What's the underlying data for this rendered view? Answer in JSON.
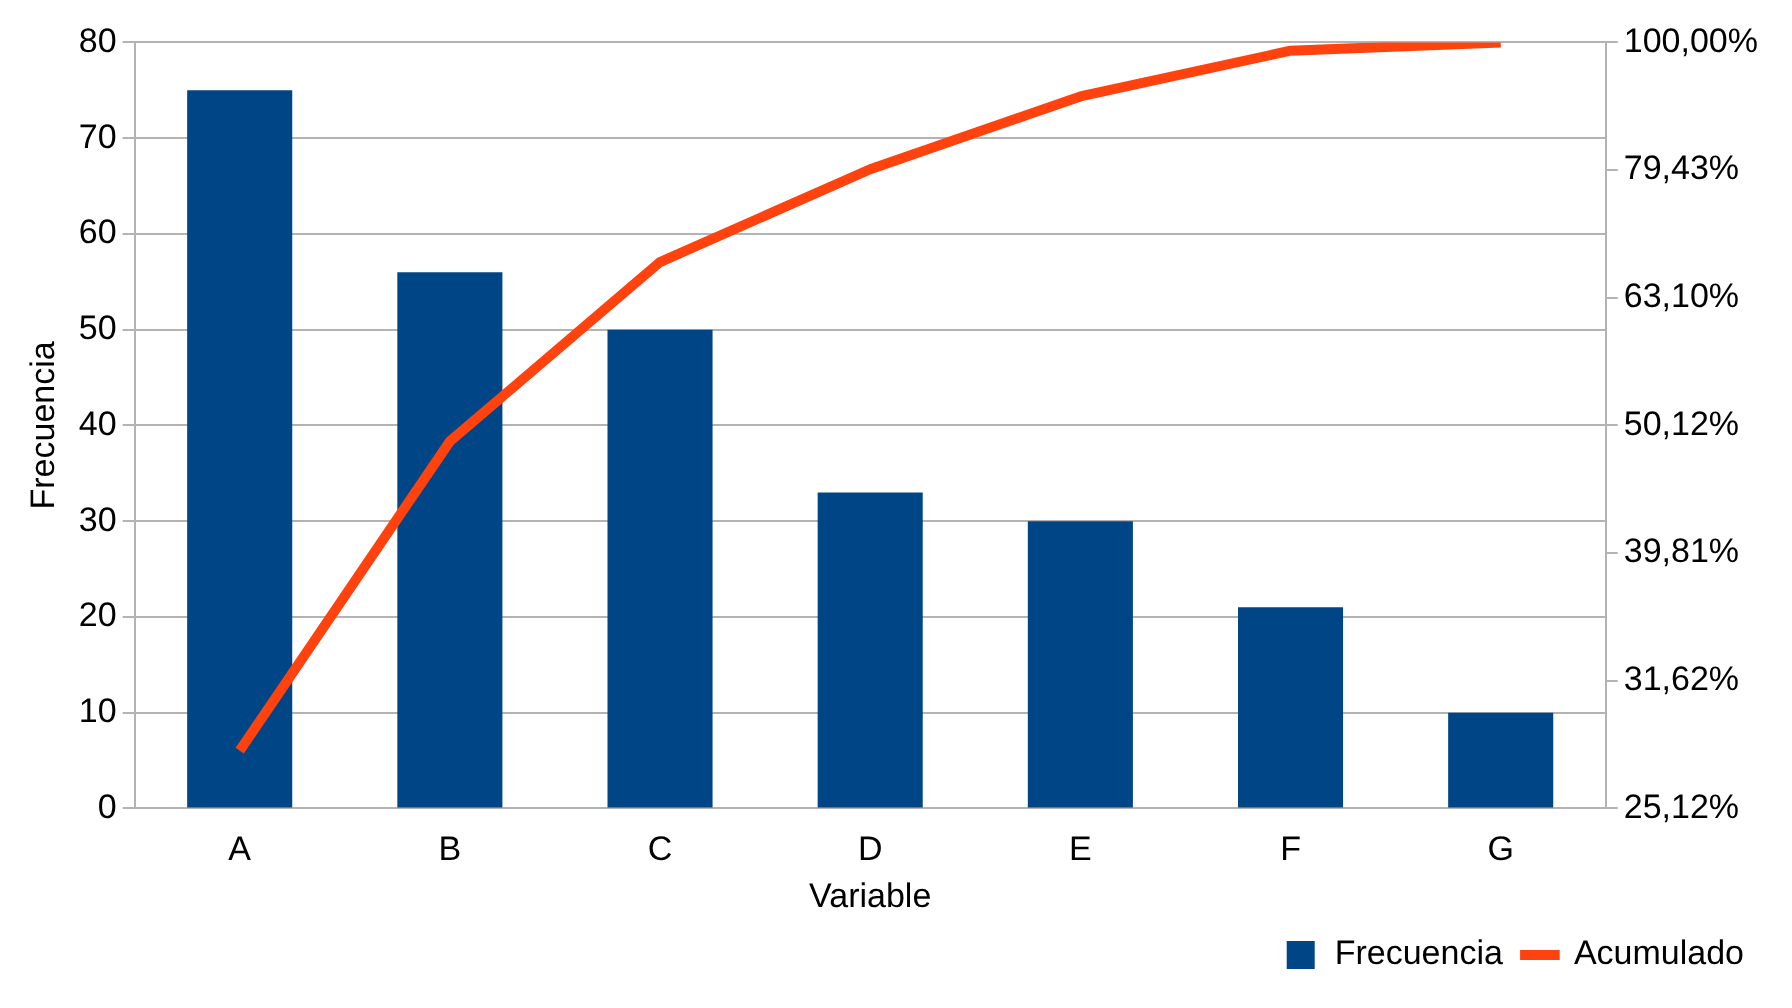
{
  "chart_data": {
    "type": "bar",
    "xlabel": "Variable",
    "ylabel": "Frecuencia",
    "categories": [
      "A",
      "B",
      "C",
      "D",
      "E",
      "F",
      "G"
    ],
    "series": [
      {
        "name": "Frecuencia",
        "color": "#004586",
        "values": [
          75,
          56,
          50,
          33,
          30,
          21,
          10
        ]
      },
      {
        "name": "Acumulado",
        "type": "line",
        "axis": "y2",
        "color": "#ff420e",
        "values": [
          27.88,
          48.7,
          67.29,
          79.55,
          90.71,
          98.51,
          100
        ]
      }
    ],
    "ylim": [
      0,
      80
    ],
    "yticks": [
      0,
      10,
      20,
      30,
      40,
      50,
      60,
      70,
      80
    ],
    "y2lim": [
      25.12,
      100
    ],
    "y2ticks": [
      {
        "value": 25.12,
        "label": "25,12%"
      },
      {
        "value": 31.62,
        "label": "31,62%"
      },
      {
        "value": 39.81,
        "label": "39,81%"
      },
      {
        "value": 50.12,
        "label": "50,12%"
      },
      {
        "value": 63.1,
        "label": "63,10%"
      },
      {
        "value": 79.43,
        "label": "79,43%"
      },
      {
        "value": 100,
        "label": "100,00%"
      }
    ],
    "log": "y2",
    "grid": "y",
    "legend": "bottom right",
    "marker": "none",
    "line_style": "solid"
  }
}
